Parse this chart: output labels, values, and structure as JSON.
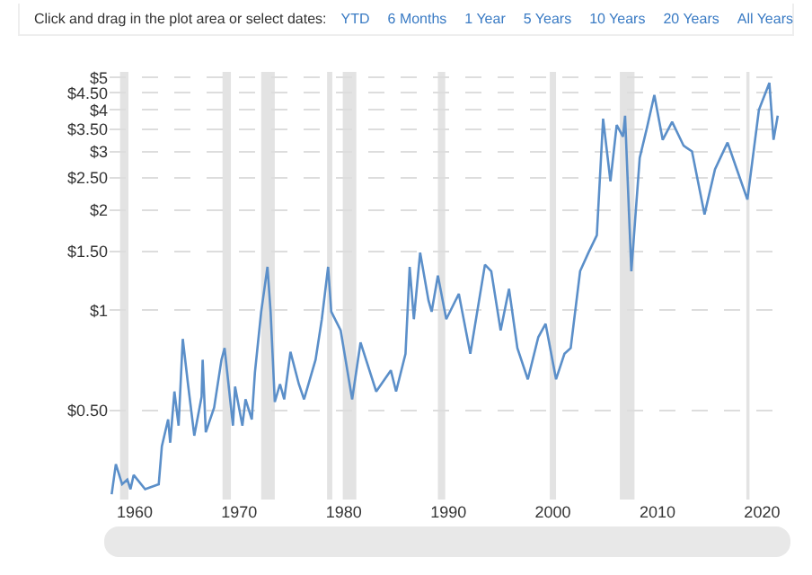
{
  "chart_data": {
    "type": "line",
    "annotations": [
      "Click and drag in the plot area or select dates:",
      "YTD",
      "6 Months",
      "1 Year",
      "5 Years",
      "10 Years",
      "20 Years",
      "All Years"
    ],
    "x": [
      1957.8,
      1958.2,
      1958.8,
      1959.3,
      1959.6,
      1959.9,
      1961.0,
      1962.3,
      1962.6,
      1963.2,
      1963.4,
      1963.8,
      1964.2,
      1964.6,
      1965.1,
      1965.7,
      1966.4,
      1966.5,
      1966.8,
      1967.6,
      1968.3,
      1968.6,
      1969.4,
      1969.6,
      1970.3,
      1970.6,
      1971.2,
      1971.5,
      1972.1,
      1972.7,
      1973.0,
      1973.4,
      1973.9,
      1974.3,
      1974.9,
      1975.7,
      1976.2,
      1977.3,
      1977.9,
      1978.5,
      1978.8,
      1979.7,
      1980.8,
      1981.6,
      1983.1,
      1984.5,
      1985.0,
      1985.9,
      1986.3,
      1986.7,
      1987.3,
      1988.1,
      1988.4,
      1989.0,
      1989.8,
      1991.0,
      1992.1,
      1993.5,
      1994.1,
      1995.0,
      1995.8,
      1996.6,
      1997.6,
      1998.6,
      1999.3,
      2000.3,
      2001.1,
      2001.7,
      2002.6,
      2003.4,
      2004.2,
      2004.8,
      2005.5,
      2006.1,
      2006.7,
      2006.9,
      2007.5,
      2008.3,
      2009.0,
      2009.7,
      2010.5,
      2011.4,
      2012.5,
      2013.3,
      2014.5,
      2015.5,
      2016.7,
      2017.5,
      2018.6,
      2019.7,
      2020.7,
      2021.1,
      2021.5
    ],
    "series": [
      {
        "color": "#5b8fc9",
        "values": [
          0.28,
          0.345,
          0.3,
          0.31,
          0.29,
          0.32,
          0.29,
          0.3,
          0.39,
          0.47,
          0.4,
          0.57,
          0.45,
          0.82,
          0.6,
          0.42,
          0.55,
          0.71,
          0.43,
          0.51,
          0.71,
          0.77,
          0.45,
          0.59,
          0.45,
          0.54,
          0.47,
          0.65,
          0.99,
          1.35,
          0.99,
          0.53,
          0.6,
          0.54,
          0.75,
          0.6,
          0.54,
          0.71,
          0.94,
          1.35,
          0.99,
          0.87,
          0.54,
          0.8,
          0.57,
          0.66,
          0.57,
          0.74,
          1.35,
          0.94,
          1.49,
          1.07,
          0.99,
          1.27,
          0.94,
          1.12,
          0.74,
          1.37,
          1.31,
          0.87,
          1.16,
          0.77,
          0.62,
          0.83,
          0.91,
          0.62,
          0.74,
          0.77,
          1.31,
          1.49,
          1.68,
          3.76,
          2.44,
          3.6,
          3.32,
          3.84,
          1.31,
          2.87,
          3.54,
          4.43,
          3.25,
          3.68,
          3.12,
          3.0,
          1.94,
          2.65,
          3.19,
          2.7,
          2.15,
          4.0,
          4.82,
          3.25,
          3.84
        ]
      }
    ],
    "xlim": [
      1957.6,
      2022.2
    ],
    "xticks": [
      1960,
      1970,
      1980,
      1990,
      2000,
      2010,
      2020
    ],
    "ylim": [
      0.27,
      5.2
    ],
    "yticks": [
      {
        "value": 0.5,
        "label": "$0.50"
      },
      {
        "value": 1,
        "label": "$1"
      },
      {
        "value": 1.5,
        "label": "$1.50"
      },
      {
        "value": 2,
        "label": "$2"
      },
      {
        "value": 2.5,
        "label": "$2.50"
      },
      {
        "value": 3,
        "label": "$3"
      },
      {
        "value": 3.5,
        "label": "$3.50"
      },
      {
        "value": 4,
        "label": "$4"
      },
      {
        "value": 4.5,
        "label": "$4.50"
      },
      {
        "value": 5,
        "label": "$5"
      }
    ],
    "log": true,
    "grid": "y",
    "marker": "none",
    "line_style": "solid",
    "bands": [
      {
        "axis": "x",
        "from": 1958.6,
        "to": 1959.4,
        "color": "#e3e3e3"
      },
      {
        "axis": "x",
        "from": 1968.4,
        "to": 1969.2,
        "color": "#e3e3e3"
      },
      {
        "axis": "x",
        "from": 1972.1,
        "to": 1973.4,
        "color": "#e3e3e3"
      },
      {
        "axis": "x",
        "from": 1978.4,
        "to": 1978.9,
        "color": "#e3e3e3"
      },
      {
        "axis": "x",
        "from": 1979.9,
        "to": 1981.2,
        "color": "#e3e3e3"
      },
      {
        "axis": "x",
        "from": 1989.0,
        "to": 1989.7,
        "color": "#e3e3e3"
      },
      {
        "axis": "x",
        "from": 1999.7,
        "to": 2000.3,
        "color": "#e3e3e3"
      },
      {
        "axis": "x",
        "from": 2006.4,
        "to": 2007.8,
        "color": "#e3e3e3"
      },
      {
        "axis": "x",
        "from": 2018.5,
        "to": 2018.8,
        "color": "#e3e3e3"
      }
    ]
  }
}
